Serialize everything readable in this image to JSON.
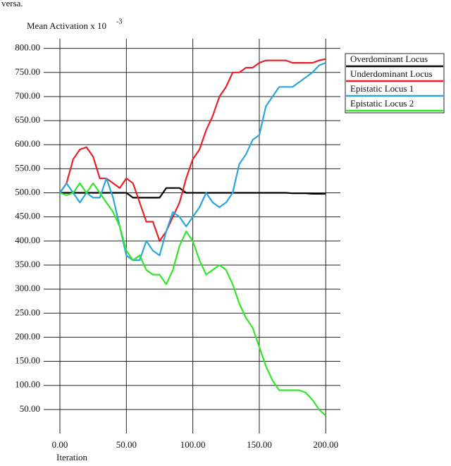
{
  "caption_fragment": "versa.",
  "chart_data": {
    "type": "line",
    "y_label": "Mean Activation x 10",
    "y_label_exponent": "-3",
    "x_label": "Iteration",
    "x": [
      0,
      5,
      10,
      15,
      20,
      25,
      30,
      35,
      40,
      45,
      50,
      55,
      60,
      65,
      70,
      75,
      80,
      85,
      90,
      95,
      100,
      105,
      110,
      115,
      120,
      125,
      130,
      135,
      140,
      145,
      150,
      155,
      160,
      165,
      170,
      175,
      180,
      185,
      190,
      195,
      200
    ],
    "series": [
      {
        "name": "Overdominant Locus",
        "color": "#000000",
        "values": [
          500,
          500,
          500,
          500,
          500,
          500,
          500,
          500,
          500,
          500,
          500,
          490,
          490,
          490,
          490,
          490,
          510,
          510,
          510,
          500,
          500,
          500,
          500,
          500,
          500,
          500,
          500,
          500,
          500,
          500,
          500,
          500,
          500,
          500,
          500,
          499,
          499,
          499,
          498,
          498,
          498
        ]
      },
      {
        "name": "Underdominant Locus",
        "color": "#e8202a",
        "values": [
          500,
          520,
          570,
          590,
          595,
          575,
          530,
          530,
          520,
          510,
          530,
          520,
          480,
          440,
          440,
          400,
          420,
          450,
          480,
          530,
          570,
          590,
          630,
          660,
          700,
          720,
          750,
          750,
          760,
          760,
          770,
          775,
          775,
          775,
          775,
          770,
          770,
          770,
          770,
          775,
          778
        ]
      },
      {
        "name": "Epistatic Locus 1",
        "color": "#2aa6dc",
        "values": [
          500,
          520,
          500,
          480,
          500,
          490,
          490,
          530,
          490,
          430,
          370,
          360,
          360,
          400,
          380,
          370,
          420,
          460,
          450,
          430,
          450,
          470,
          500,
          480,
          470,
          480,
          500,
          560,
          580,
          610,
          620,
          680,
          700,
          720,
          720,
          720,
          730,
          740,
          750,
          765,
          770
        ]
      },
      {
        "name": "Epistatic Locus 2",
        "color": "#33e52a",
        "values": [
          500,
          495,
          500,
          520,
          500,
          520,
          500,
          480,
          460,
          430,
          380,
          360,
          370,
          340,
          330,
          330,
          310,
          340,
          390,
          420,
          400,
          360,
          330,
          340,
          350,
          340,
          310,
          270,
          240,
          220,
          180,
          140,
          110,
          90,
          90,
          90,
          90,
          85,
          70,
          50,
          37
        ]
      }
    ],
    "xlim": [
      0,
      211
    ],
    "ylim": [
      0,
      820
    ],
    "xticks": [
      {
        "value": 0,
        "label": "0.00"
      },
      {
        "value": 50,
        "label": "50.00"
      },
      {
        "value": 100,
        "label": "100.00"
      },
      {
        "value": 150,
        "label": "150.00"
      },
      {
        "value": 200,
        "label": "200.00"
      }
    ],
    "yticks": [
      {
        "value": 50,
        "label": "50.00"
      },
      {
        "value": 100,
        "label": "100.00"
      },
      {
        "value": 150,
        "label": "150.00"
      },
      {
        "value": 200,
        "label": "200.00"
      },
      {
        "value": 250,
        "label": "250.00"
      },
      {
        "value": 300,
        "label": "300.00"
      },
      {
        "value": 350,
        "label": "350.00"
      },
      {
        "value": 400,
        "label": "400.00"
      },
      {
        "value": 450,
        "label": "450.00"
      },
      {
        "value": 500,
        "label": "500.00"
      },
      {
        "value": 550,
        "label": "550.00"
      },
      {
        "value": 600,
        "label": "600.00"
      },
      {
        "value": 650,
        "label": "650.00"
      },
      {
        "value": 700,
        "label": "700.00"
      },
      {
        "value": 750,
        "label": "750.00"
      },
      {
        "value": 800,
        "label": "800.00"
      }
    ],
    "grid": true,
    "legend_position": "right"
  }
}
